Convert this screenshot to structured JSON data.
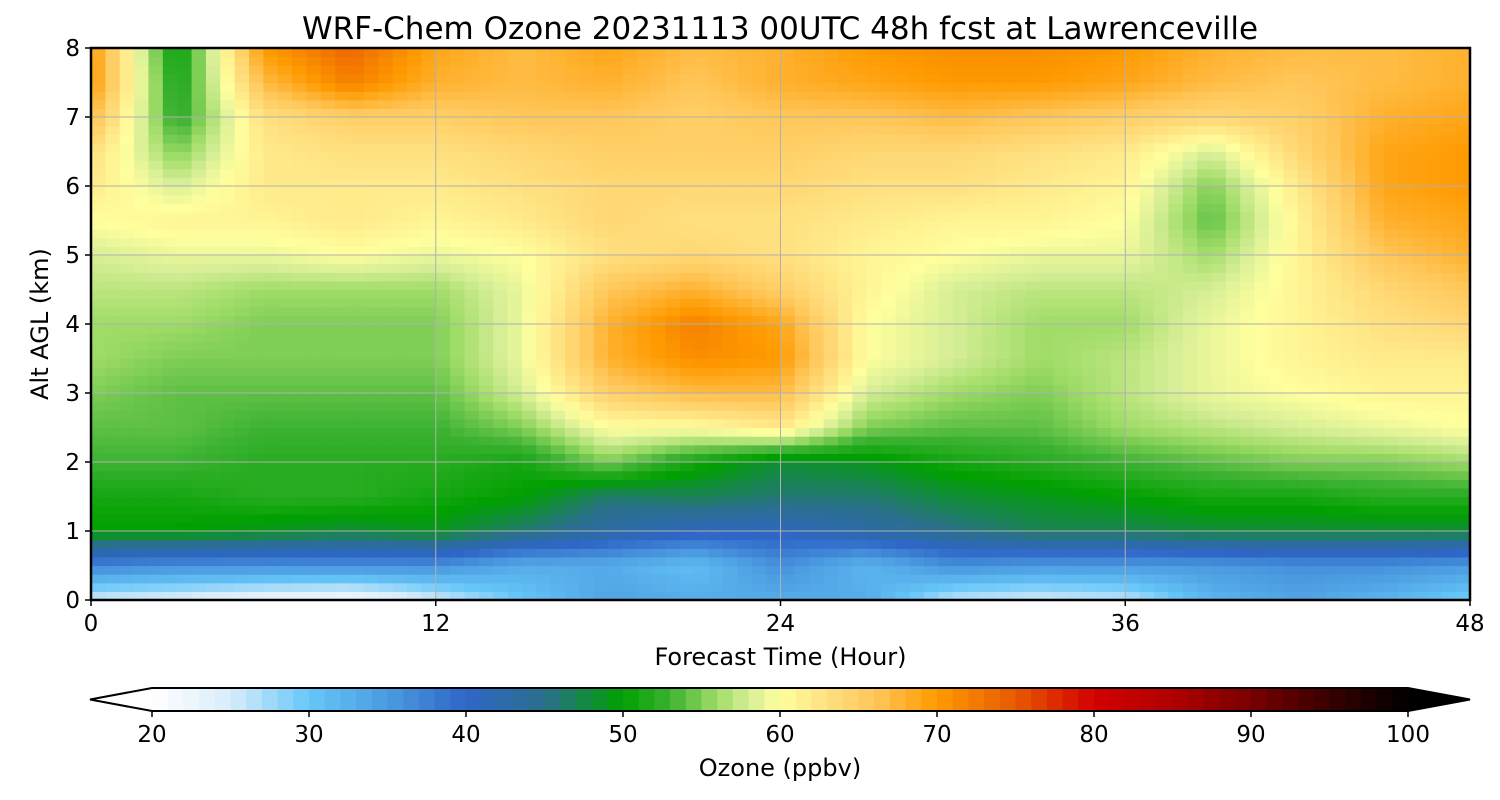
{
  "chart_data": {
    "type": "heatmap",
    "title": "WRF-Chem Ozone  20231113 00UTC 48h fcst at Lawrenceville",
    "xlabel": "Forecast Time (Hour)",
    "ylabel": "Alt AGL (km)",
    "xlim": [
      0,
      48
    ],
    "ylim": [
      0,
      8
    ],
    "x_ticks": [
      0,
      12,
      24,
      36,
      48
    ],
    "y_ticks": [
      0,
      1,
      2,
      3,
      4,
      5,
      6,
      7,
      8
    ],
    "grid": true,
    "x": [
      0,
      3,
      6,
      9,
      12,
      15,
      18,
      21,
      24,
      27,
      30,
      33,
      36,
      39,
      42,
      45,
      48
    ],
    "y": [
      0,
      0.5,
      1,
      1.5,
      2,
      2.5,
      3,
      3.5,
      4,
      4.5,
      5,
      5.5,
      6,
      6.5,
      7,
      7.5,
      8
    ],
    "z": [
      [
        25,
        24,
        22,
        21,
        25,
        30,
        34,
        33,
        33,
        33,
        26,
        25,
        26,
        32,
        34,
        32,
        29
      ],
      [
        37,
        36,
        36,
        36,
        36,
        33,
        33,
        31,
        36,
        32,
        36,
        35,
        35,
        35,
        36,
        36,
        35
      ],
      [
        50,
        50,
        49,
        48,
        49,
        46,
        43,
        41,
        41,
        43,
        45,
        47,
        47,
        48,
        48,
        48,
        48
      ],
      [
        51,
        51,
        52,
        52,
        51,
        50,
        46,
        47,
        46,
        46,
        48,
        49,
        50,
        51,
        51,
        52,
        52
      ],
      [
        53,
        53,
        52,
        52,
        52,
        51,
        55,
        51,
        48,
        49,
        51,
        52,
        53,
        54,
        55,
        55,
        56
      ],
      [
        54,
        54,
        53,
        53,
        53,
        55,
        60,
        60,
        62,
        55,
        54,
        54,
        56,
        57,
        58,
        59,
        60
      ],
      [
        55,
        54,
        54,
        54,
        54,
        58,
        65,
        67,
        67,
        58,
        56,
        55,
        57,
        59,
        60,
        61,
        61
      ],
      [
        56,
        55,
        55,
        55,
        55,
        59,
        68,
        71,
        70,
        60,
        58,
        56,
        57,
        59,
        61,
        62,
        62
      ],
      [
        56,
        56,
        55,
        55,
        55,
        59,
        68,
        72,
        69,
        60,
        58,
        56,
        56,
        59,
        61,
        63,
        64
      ],
      [
        57,
        57,
        56,
        56,
        56,
        59,
        66,
        68,
        65,
        61,
        58,
        57,
        57,
        58,
        61,
        64,
        66
      ],
      [
        58,
        59,
        59,
        60,
        59,
        60,
        63,
        64,
        63,
        61,
        60,
        59,
        59,
        56,
        61,
        66,
        68
      ],
      [
        60,
        61,
        61,
        62,
        61,
        62,
        64,
        63,
        63,
        62,
        61,
        61,
        60,
        54,
        61,
        68,
        69
      ],
      [
        62,
        58,
        62,
        62,
        62,
        63,
        64,
        64,
        64,
        63,
        63,
        62,
        61,
        55,
        62,
        69,
        70
      ],
      [
        63,
        55,
        62,
        63,
        63,
        64,
        65,
        65,
        65,
        64,
        64,
        63,
        62,
        58,
        64,
        69,
        70
      ],
      [
        67,
        52,
        63,
        65,
        65,
        66,
        66,
        65,
        66,
        66,
        67,
        66,
        65,
        64,
        65,
        68,
        69
      ],
      [
        70,
        51,
        67,
        72,
        68,
        67,
        68,
        66,
        68,
        69,
        70,
        70,
        69,
        67,
        66,
        67,
        68
      ],
      [
        70,
        50,
        70,
        74,
        69,
        67,
        69,
        67,
        68,
        70,
        71,
        71,
        70,
        68,
        67,
        67,
        68
      ]
    ],
    "colorbar": {
      "label": "Ozone  (ppbv)",
      "range": [
        20,
        100
      ],
      "ticks": [
        20,
        30,
        40,
        50,
        60,
        70,
        80,
        90,
        100
      ],
      "extend": "both",
      "stops": [
        [
          20,
          "#ffffff"
        ],
        [
          25,
          "#d8ecfa"
        ],
        [
          30,
          "#66c6f8"
        ],
        [
          35,
          "#4b9be0"
        ],
        [
          40,
          "#2f66c8"
        ],
        [
          45,
          "#2a6f8c"
        ],
        [
          50,
          "#00a000"
        ],
        [
          53,
          "#3cb232"
        ],
        [
          56,
          "#a0dc68"
        ],
        [
          58,
          "#d6ee96"
        ],
        [
          60,
          "#ffff9e"
        ],
        [
          63,
          "#ffe080"
        ],
        [
          66,
          "#ffc75a"
        ],
        [
          70,
          "#ff9a00"
        ],
        [
          75,
          "#e75a00"
        ],
        [
          80,
          "#d20000"
        ],
        [
          85,
          "#b00000"
        ],
        [
          90,
          "#780000"
        ],
        [
          95,
          "#380000"
        ],
        [
          100,
          "#000000"
        ]
      ],
      "under_color": "#ffffff",
      "over_color": "#000000"
    }
  }
}
